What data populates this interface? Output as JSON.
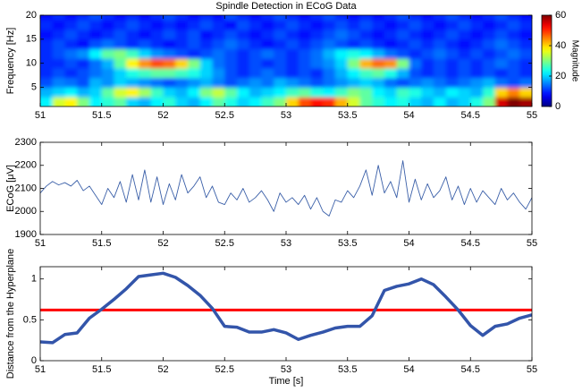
{
  "chart_data": [
    {
      "type": "heatmap",
      "title": "Spindle Detection in ECoG Data",
      "ylabel": "Frequency [Hz]",
      "colorbar_label": "Magnitude",
      "xlim": [
        51,
        55
      ],
      "xticks": [
        51,
        51.5,
        52,
        52.5,
        53,
        53.5,
        54,
        54.5,
        55
      ],
      "ylim": [
        1,
        20
      ],
      "yticks": [
        5,
        10,
        15,
        20
      ],
      "clim": [
        0,
        60
      ],
      "cticks": [
        0,
        20,
        40,
        60
      ],
      "colormap": "jet",
      "x": [
        51.05,
        51.15,
        51.25,
        51.35,
        51.45,
        51.55,
        51.65,
        51.75,
        51.85,
        51.95,
        52.05,
        52.15,
        52.25,
        52.35,
        52.45,
        52.55,
        52.65,
        52.75,
        52.85,
        52.95,
        53.05,
        53.15,
        53.25,
        53.35,
        53.45,
        53.55,
        53.65,
        53.75,
        53.85,
        53.95,
        54.05,
        54.15,
        54.25,
        54.35,
        54.45,
        54.55,
        54.65,
        54.75,
        54.85,
        54.95
      ],
      "y": [
        2,
        4,
        6,
        8,
        10,
        12,
        14,
        16,
        18,
        20
      ],
      "z": [
        [
          22,
          35,
          38,
          30,
          22,
          25,
          28,
          20,
          18,
          22,
          25,
          20,
          18,
          22,
          28,
          24,
          20,
          22,
          26,
          30,
          40,
          48,
          52,
          50,
          42,
          35,
          28,
          25,
          22,
          24,
          20,
          18,
          22,
          18,
          20,
          24,
          30,
          55,
          60,
          58
        ],
        [
          18,
          20,
          22,
          18,
          20,
          28,
          35,
          38,
          32,
          26,
          20,
          18,
          22,
          30,
          34,
          28,
          22,
          18,
          20,
          22,
          26,
          28,
          24,
          22,
          26,
          30,
          28,
          22,
          20,
          26,
          24,
          20,
          18,
          22,
          20,
          18,
          25,
          40,
          45,
          40
        ],
        [
          12,
          15,
          14,
          12,
          18,
          16,
          20,
          18,
          16,
          14,
          12,
          14,
          16,
          18,
          15,
          12,
          14,
          16,
          14,
          18,
          16,
          14,
          12,
          14,
          16,
          18,
          20,
          18,
          14,
          12,
          14,
          16,
          14,
          12,
          14,
          16,
          18,
          14,
          12,
          14
        ],
        [
          10,
          12,
          10,
          12,
          14,
          16,
          20,
          24,
          26,
          28,
          28,
          26,
          24,
          20,
          16,
          12,
          10,
          12,
          14,
          12,
          10,
          12,
          10,
          14,
          18,
          22,
          26,
          28,
          24,
          18,
          12,
          10,
          12,
          10,
          12,
          10,
          12,
          10,
          12,
          10
        ],
        [
          10,
          10,
          12,
          10,
          14,
          18,
          28,
          38,
          44,
          48,
          46,
          40,
          30,
          20,
          14,
          12,
          10,
          12,
          10,
          12,
          10,
          12,
          14,
          16,
          20,
          30,
          42,
          46,
          44,
          30,
          14,
          10,
          12,
          10,
          12,
          10,
          12,
          14,
          12,
          10
        ],
        [
          10,
          12,
          14,
          16,
          22,
          28,
          30,
          26,
          20,
          16,
          14,
          12,
          10,
          12,
          14,
          12,
          10,
          12,
          14,
          12,
          10,
          12,
          14,
          18,
          22,
          24,
          22,
          18,
          14,
          12,
          10,
          12,
          14,
          12,
          10,
          12,
          10,
          12,
          14,
          12
        ],
        [
          10,
          12,
          10,
          8,
          12,
          14,
          12,
          10,
          12,
          10,
          8,
          10,
          12,
          10,
          12,
          14,
          12,
          10,
          8,
          10,
          12,
          10,
          12,
          14,
          12,
          10,
          12,
          10,
          8,
          10,
          12,
          10,
          12,
          10,
          8,
          10,
          12,
          14,
          12,
          10
        ],
        [
          8,
          10,
          12,
          10,
          8,
          10,
          12,
          10,
          8,
          10,
          12,
          10,
          12,
          8,
          10,
          12,
          10,
          8,
          10,
          12,
          10,
          8,
          10,
          12,
          14,
          12,
          10,
          8,
          10,
          12,
          10,
          8,
          10,
          12,
          10,
          8,
          10,
          12,
          10,
          8
        ],
        [
          10,
          8,
          10,
          12,
          10,
          8,
          10,
          12,
          10,
          8,
          10,
          8,
          10,
          12,
          10,
          8,
          12,
          10,
          8,
          10,
          12,
          10,
          8,
          10,
          12,
          10,
          12,
          10,
          8,
          10,
          12,
          10,
          8,
          10,
          12,
          10,
          8,
          10,
          12,
          10
        ],
        [
          8,
          10,
          8,
          10,
          12,
          10,
          8,
          10,
          8,
          10,
          12,
          10,
          8,
          10,
          8,
          12,
          10,
          8,
          10,
          12,
          10,
          8,
          10,
          12,
          10,
          8,
          10,
          8,
          10,
          12,
          10,
          8,
          10,
          12,
          10,
          8,
          10,
          12,
          10,
          8
        ]
      ]
    },
    {
      "type": "line",
      "ylabel": "ECoG [μV]",
      "xlim": [
        51,
        55
      ],
      "xticks": [
        51,
        51.5,
        52,
        52.5,
        53,
        53.5,
        54,
        54.5,
        55
      ],
      "ylim": [
        1900,
        2300
      ],
      "yticks": [
        1900,
        2000,
        2100,
        2200,
        2300
      ],
      "x": [
        51,
        51.05,
        51.1,
        51.15,
        51.2,
        51.25,
        51.3,
        51.35,
        51.4,
        51.45,
        51.5,
        51.55,
        51.6,
        51.65,
        51.7,
        51.75,
        51.8,
        51.85,
        51.9,
        51.95,
        52,
        52.05,
        52.1,
        52.15,
        52.2,
        52.25,
        52.3,
        52.35,
        52.4,
        52.45,
        52.5,
        52.55,
        52.6,
        52.65,
        52.7,
        52.75,
        52.8,
        52.85,
        52.9,
        52.95,
        53,
        53.05,
        53.1,
        53.15,
        53.2,
        53.25,
        53.3,
        53.35,
        53.4,
        53.45,
        53.5,
        53.55,
        53.6,
        53.65,
        53.7,
        53.75,
        53.8,
        53.85,
        53.9,
        53.95,
        54,
        54.05,
        54.1,
        54.15,
        54.2,
        54.25,
        54.3,
        54.35,
        54.4,
        54.45,
        54.5,
        54.55,
        54.6,
        54.65,
        54.7,
        54.75,
        54.8,
        54.85,
        54.9,
        54.95,
        55
      ],
      "series": [
        {
          "color": "#3a5fa8",
          "values": [
            2080,
            2110,
            2130,
            2115,
            2125,
            2110,
            2135,
            2090,
            2110,
            2070,
            2030,
            2100,
            2060,
            2130,
            2040,
            2160,
            2050,
            2180,
            2040,
            2150,
            2030,
            2120,
            2050,
            2160,
            2080,
            2110,
            2150,
            2060,
            2110,
            2040,
            2030,
            2080,
            2050,
            2100,
            2040,
            2060,
            2090,
            2050,
            2000,
            2080,
            2040,
            2060,
            2030,
            2070,
            2010,
            2060,
            2000,
            1980,
            2050,
            2040,
            2090,
            2060,
            2110,
            2180,
            2070,
            2200,
            2080,
            2130,
            2060,
            2220,
            2040,
            2140,
            2050,
            2120,
            2060,
            2090,
            2150,
            2050,
            2110,
            2030,
            2100,
            2040,
            2090,
            2060,
            2030,
            2100,
            2050,
            2080,
            2040,
            2010,
            2060
          ]
        }
      ]
    },
    {
      "type": "line",
      "ylabel": "Distance from the Hyperplane",
      "xlabel": "Time [s]",
      "xlim": [
        51,
        55
      ],
      "xticks": [
        51,
        51.5,
        52,
        52.5,
        53,
        53.5,
        54,
        54.5,
        55
      ],
      "ylim": [
        0,
        1.15
      ],
      "yticks": [
        0,
        0.5,
        1
      ],
      "x": [
        51,
        51.1,
        51.2,
        51.3,
        51.4,
        51.5,
        51.6,
        51.7,
        51.8,
        51.9,
        52,
        52.1,
        52.2,
        52.3,
        52.4,
        52.5,
        52.6,
        52.7,
        52.8,
        52.9,
        53,
        53.1,
        53.2,
        53.3,
        53.4,
        53.5,
        53.6,
        53.7,
        53.8,
        53.9,
        54,
        54.1,
        54.2,
        54.3,
        54.4,
        54.5,
        54.6,
        54.7,
        54.8,
        54.9,
        55
      ],
      "series": [
        {
          "color": "#3355aa",
          "width": 3.5,
          "values": [
            0.23,
            0.22,
            0.32,
            0.34,
            0.52,
            0.63,
            0.75,
            0.88,
            1.03,
            1.05,
            1.07,
            1.02,
            0.92,
            0.8,
            0.64,
            0.42,
            0.41,
            0.35,
            0.35,
            0.38,
            0.34,
            0.26,
            0.31,
            0.35,
            0.4,
            0.42,
            0.42,
            0.55,
            0.86,
            0.91,
            0.94,
            1.0,
            0.93,
            0.78,
            0.62,
            0.43,
            0.31,
            0.42,
            0.45,
            0.52,
            0.56
          ]
        }
      ],
      "threshold": {
        "value": 0.62,
        "color": "#ff0000"
      }
    }
  ]
}
